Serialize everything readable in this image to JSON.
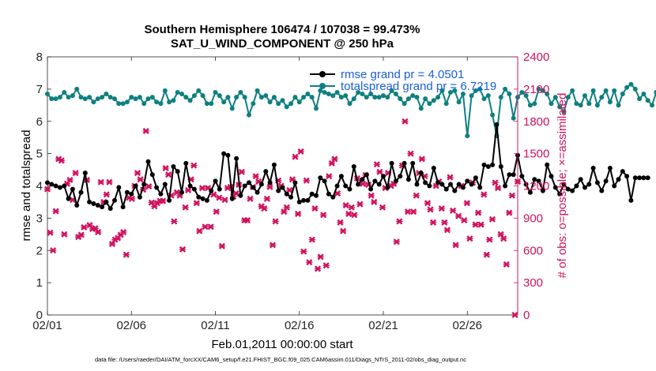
{
  "figure": {
    "title_line1": "Southern Hemisphere 106474 / 107038 = 99.473%",
    "title_line2": "SAT_U_WIND_COMPONENT @ 250 hPa",
    "xlabel": "Feb.01,2011 00:00:00 start",
    "footnote": "data file: /Users/raeder/DAI/ATM_forcXX/CAM6_setup/f.e21.FHIST_BGC.f09_025.CAM6assim.011/Diags_NTrS_2011-02/obs_diag_output.nc"
  },
  "colors": {
    "rmse": "#000000",
    "spread": "#0e8080",
    "obs": "#d0125e",
    "legend_text": "#1a5fe0"
  },
  "chart_data": {
    "type": "line",
    "title": "Southern Hemisphere 106474 / 107038 = 99.473%",
    "subtitle": "SAT_U_WIND_COMPONENT @ 250 hPa",
    "xlabel": "Feb.01,2011 00:00:00 start",
    "ylabel_left": "rmse and totalspread",
    "ylabel_right": "# of obs: o=possible; ×=assimilated",
    "xlim": [
      0,
      28
    ],
    "x_step": 0.25,
    "x_ticks": [
      0,
      5,
      10,
      15,
      20,
      25
    ],
    "x_tick_labels": [
      "02/01",
      "02/06",
      "02/11",
      "02/16",
      "02/21",
      "02/26"
    ],
    "ylim_left": [
      0,
      8
    ],
    "y_ticks_left": [
      "0",
      "1",
      "2",
      "3",
      "4",
      "5",
      "6",
      "7",
      "8"
    ],
    "ylim_right": [
      0,
      2400
    ],
    "y_ticks_right": [
      "0",
      "300",
      "600",
      "900",
      "1200",
      "1500",
      "1800",
      "2100",
      "2400"
    ],
    "legend_position": "top-right",
    "series": [
      {
        "name": "rmse grand pr = 4.0501",
        "axis": "left",
        "values": [
          4.1,
          4.05,
          4.0,
          3.95,
          4.0,
          3.6,
          3.9,
          3.4,
          3.8,
          4.4,
          3.5,
          3.45,
          3.4,
          3.35,
          3.5,
          3.3,
          3.55,
          3.95,
          3.35,
          3.8,
          3.75,
          4.0,
          3.65,
          4.05,
          4.75,
          4.35,
          3.95,
          3.75,
          4.05,
          3.55,
          4.6,
          4.45,
          3.8,
          4.7,
          4.0,
          3.9,
          3.65,
          3.6,
          3.55,
          3.85,
          4.15,
          3.9,
          5.0,
          4.95,
          3.6,
          4.85,
          3.7,
          4.0,
          4.1,
          3.95,
          3.8,
          4.05,
          4.45,
          4.1,
          4.65,
          3.85,
          3.95,
          3.75,
          3.65,
          4.1,
          3.5,
          3.55,
          3.55,
          3.75,
          3.7,
          4.25,
          4.15,
          3.75,
          3.65,
          4.0,
          4.3,
          4.0,
          3.9,
          4.6,
          4.05,
          4.2,
          4.35,
          3.9,
          4.15,
          4.05,
          4.3,
          3.95,
          4.7,
          4.15,
          4.3,
          4.7,
          4.2,
          4.7,
          4.05,
          4.4,
          4.1,
          4.0,
          4.55,
          4.1,
          4.05,
          3.9,
          4.05,
          3.85,
          4.05,
          3.95,
          4.15,
          4.05,
          4.25,
          3.95,
          4.65,
          4.6,
          4.65,
          5.9,
          4.6,
          4.0,
          4.35,
          4.35,
          4.95,
          4.3,
          4.05,
          3.8,
          4.2,
          4.15,
          3.85,
          4.65,
          4.3,
          3.95,
          3.75,
          4.05,
          3.9,
          3.85,
          4.0,
          4.2,
          3.95,
          4.05,
          4.55,
          4.1,
          3.85,
          4.15,
          4.55,
          4.0,
          4.2,
          4.45,
          4.3,
          3.55,
          4.25,
          4.25,
          4.25,
          4.25
        ]
      },
      {
        "name": "totalspread grand pr = 6.7219",
        "axis": "left",
        "values": [
          6.85,
          6.7,
          6.7,
          6.75,
          6.9,
          6.75,
          6.8,
          7.0,
          6.75,
          6.7,
          6.75,
          6.6,
          6.7,
          6.75,
          6.85,
          6.75,
          6.7,
          6.55,
          6.55,
          6.6,
          6.75,
          6.7,
          6.75,
          6.55,
          6.7,
          6.75,
          6.6,
          6.55,
          6.95,
          6.6,
          6.65,
          6.9,
          6.85,
          6.75,
          6.65,
          6.8,
          6.95,
          6.8,
          6.55,
          6.55,
          6.9,
          6.8,
          6.6,
          6.75,
          6.4,
          6.75,
          6.9,
          6.75,
          6.2,
          6.55,
          6.95,
          6.75,
          6.8,
          6.6,
          6.75,
          6.55,
          6.65,
          6.45,
          6.55,
          6.75,
          6.6,
          6.75,
          6.85,
          6.75,
          6.4,
          6.95,
          6.9,
          6.85,
          6.8,
          6.9,
          6.75,
          6.8,
          6.55,
          6.7,
          6.9,
          6.85,
          6.75,
          6.85,
          6.75,
          6.75,
          6.8,
          6.75,
          6.95,
          6.85,
          6.7,
          6.55,
          6.7,
          6.8,
          6.75,
          6.4,
          6.7,
          6.55,
          6.65,
          6.75,
          6.95,
          6.55,
          6.9,
          6.95,
          6.6,
          6.85,
          5.55,
          6.8,
          6.95,
          7.0,
          6.7,
          6.8,
          6.2,
          5.55,
          6.75,
          7.0,
          6.85,
          6.1,
          6.75,
          6.9,
          6.8,
          6.5,
          6.55,
          7.0,
          6.95,
          6.85,
          6.55,
          6.75,
          6.45,
          6.3,
          6.75,
          6.95,
          6.55,
          6.5,
          6.8,
          6.55,
          6.95,
          6.5,
          6.75,
          6.95,
          6.6,
          6.95,
          6.5,
          6.85,
          7.05,
          7.15,
          7.0,
          6.7,
          6.85,
          6.65,
          6.5,
          6.9,
          6.7,
          6.65,
          6.55
        ]
      },
      {
        "name": "# of obs assimilated",
        "axis": "right",
        "marker": "x",
        "values": [
          1170,
          765,
          600,
          965,
          1450,
          1435,
          750,
          1220,
          1255,
          1070,
          1320,
          725,
          745,
          815,
          1255,
          835,
          800,
          805,
          770,
          1235,
          1050,
          1120,
          1235,
          660,
          700,
          715,
          745,
          770,
          560,
          1090,
          1080,
          1200,
          1320,
          1260,
          1165,
          1710,
          1195,
          1045,
          1010,
          1040,
          1060,
          1060,
          1365,
          1305,
          1110,
          870,
          1140,
          1110,
          610,
          1000,
          1160,
          1260,
          1390,
          1040,
          780,
          1180,
          820,
          1180,
          820,
          1120,
          960,
          1090,
          640,
          1070,
          1180,
          1190,
          1100,
          1130,
          1210,
          1330,
          880,
          880,
          1080,
          1190,
          1290,
          1240,
          1010,
          990,
          1080,
          1190,
          650,
          870,
          1250,
          1200,
          960,
          1000,
          1160,
          1260,
          1470,
          940,
          1520,
          590,
          1250,
          490,
          700,
          990,
          430,
          540,
          930,
          460,
          1290,
          1410,
          1450,
          1130,
          860,
          780,
          1020,
          940,
          1000,
          930,
          1270,
          1030,
          1220,
          1300,
          1210,
          1110,
          1050,
          1400,
          1330,
          1000,
          1180,
          1320,
          1200,
          1220,
          680,
          870,
          1390,
          1800,
          960,
          1500,
          960,
          1110,
          1320,
          1450,
          1290,
          1040,
          980,
          860,
          1200,
          1240,
          990,
          860,
          790,
          1280,
          970,
          650,
          920,
          1200,
          880,
          1040,
          710,
          1230,
          840,
          950,
          840,
          1120,
          560,
          700,
          890,
          1230,
          1180,
          750,
          710,
          470,
          950,
          1110,
          0,
          1240
        ]
      }
    ]
  }
}
